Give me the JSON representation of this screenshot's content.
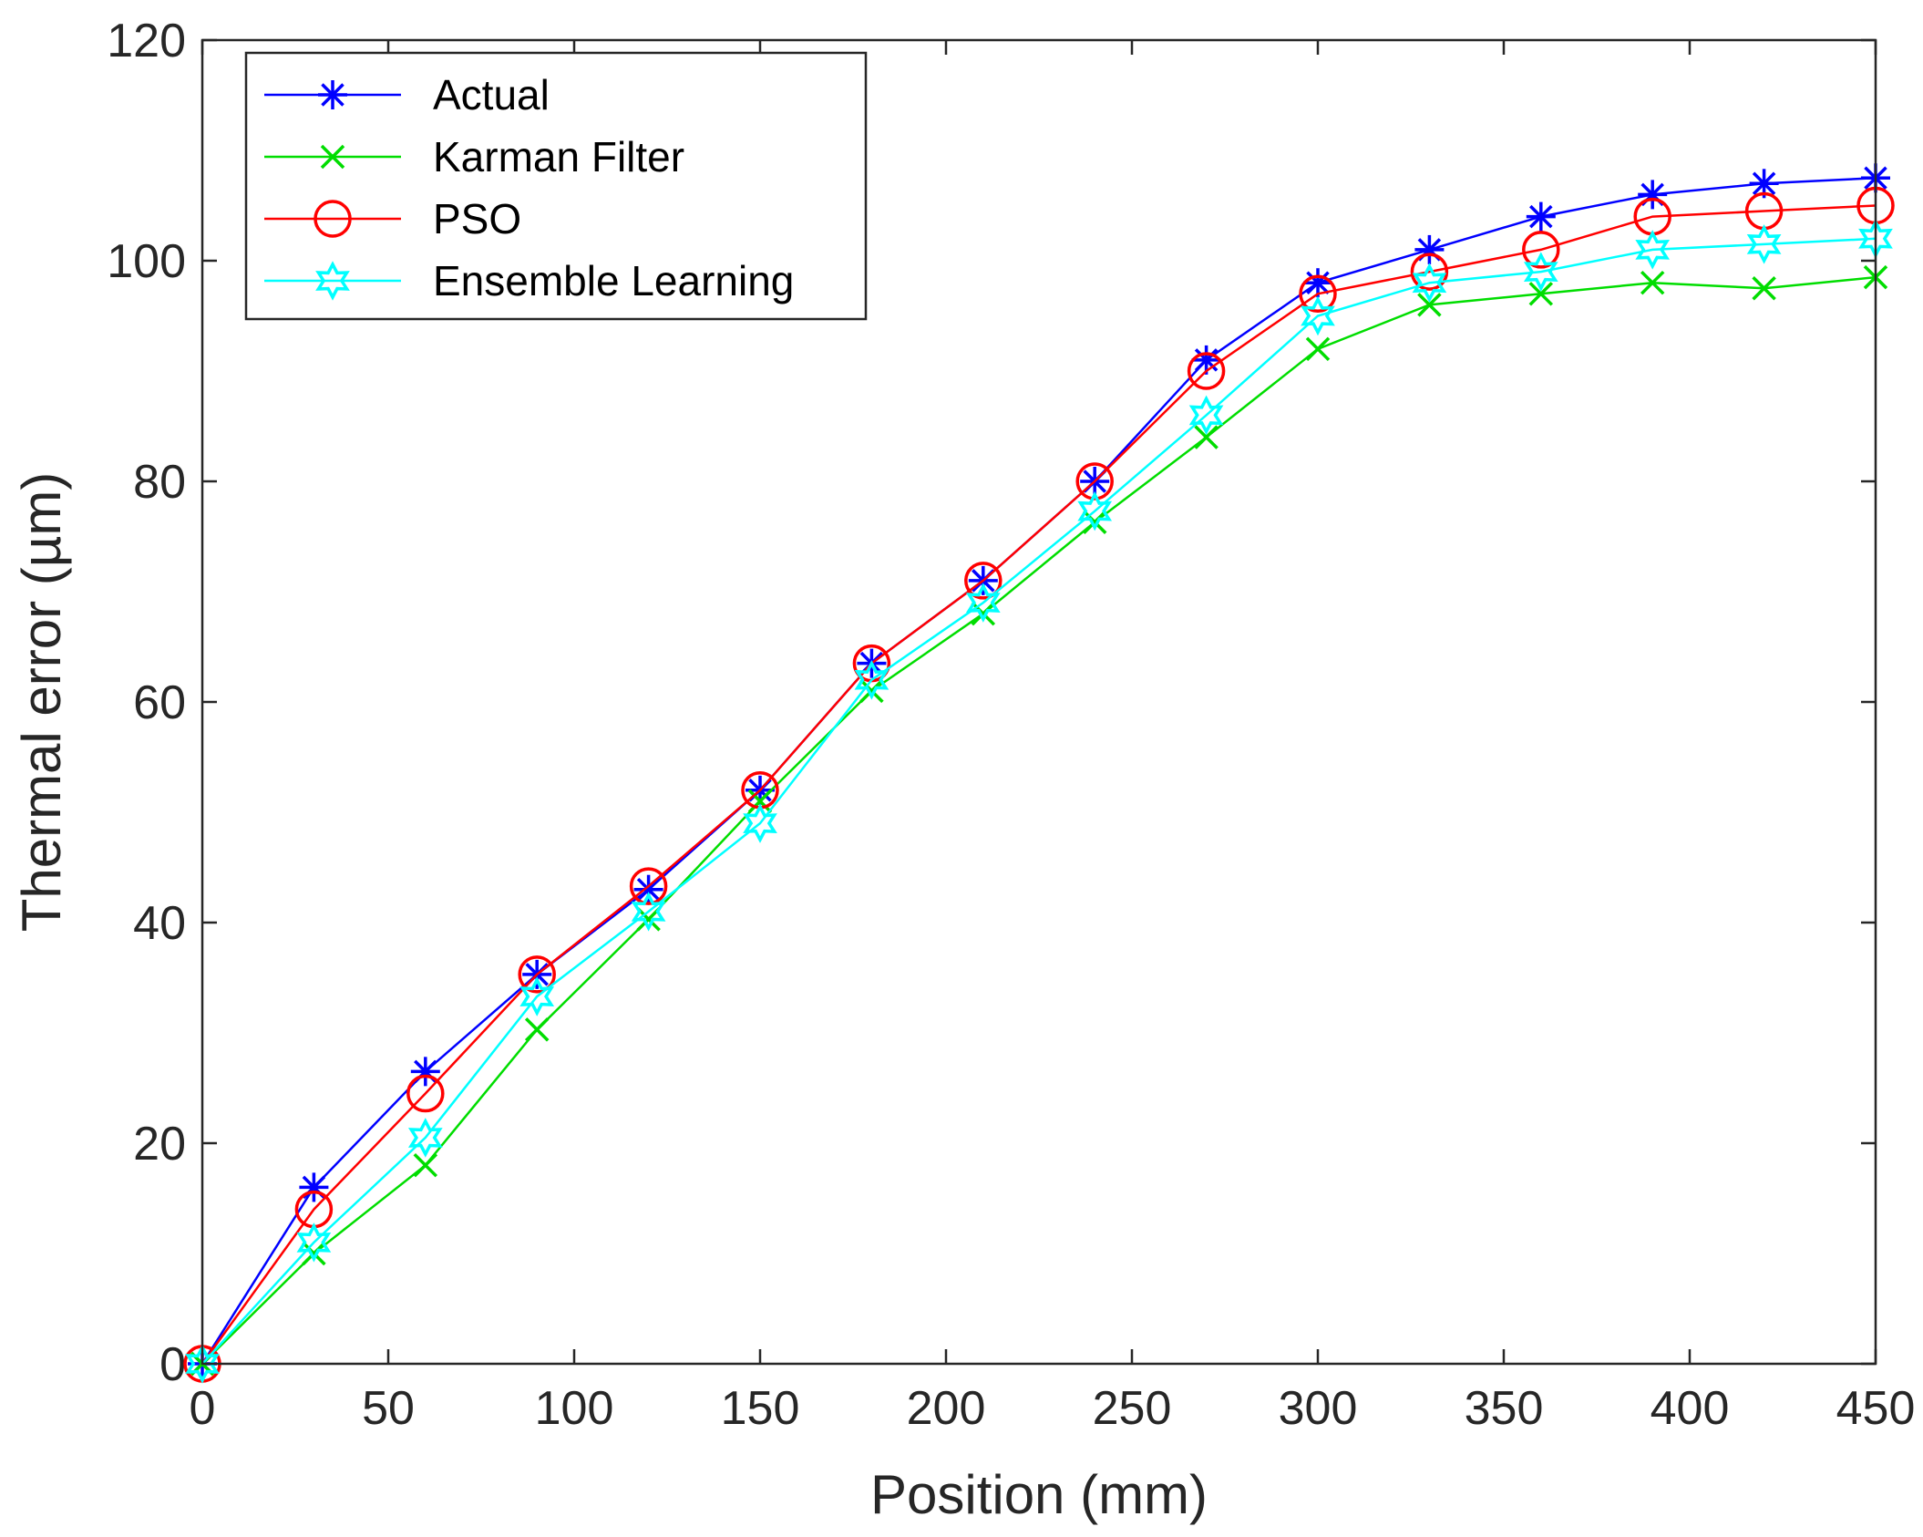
{
  "chart_data": {
    "type": "line",
    "title": "",
    "xlabel": "Position (mm)",
    "ylabel": "Thermal error (µm)",
    "xlim": [
      0,
      450
    ],
    "ylim": [
      0,
      120
    ],
    "xticks": [
      0,
      50,
      100,
      150,
      200,
      250,
      300,
      350,
      400,
      450
    ],
    "yticks": [
      0,
      20,
      40,
      60,
      80,
      100,
      120
    ],
    "grid": false,
    "legend_position": "top-left",
    "x": [
      0,
      30,
      60,
      90,
      120,
      150,
      180,
      210,
      240,
      270,
      300,
      330,
      360,
      390,
      420,
      450
    ],
    "series": [
      {
        "name": "Actual",
        "color": "#0000ff",
        "marker": "asterisk",
        "values": [
          0,
          16,
          26.5,
          35.3,
          43,
          52,
          63.5,
          71,
          80,
          91,
          98,
          101,
          104,
          106,
          107,
          107.5
        ]
      },
      {
        "name": "Karman Filter",
        "color": "#00dd00",
        "marker": "x",
        "values": [
          0,
          10,
          18,
          30.3,
          40.3,
          51,
          61,
          68,
          76.3,
          84,
          92,
          96,
          97,
          98,
          97.5,
          98.5
        ]
      },
      {
        "name": "PSO",
        "color": "#ff0000",
        "marker": "circle",
        "values": [
          0,
          14,
          24.5,
          35.3,
          43.3,
          52,
          63.5,
          71,
          80,
          90,
          97,
          99,
          101,
          104,
          104.5,
          105
        ]
      },
      {
        "name": "Ensemble Learning",
        "color": "#00ffff",
        "marker": "hexagram",
        "values": [
          0,
          11,
          20.5,
          33.3,
          41,
          49,
          62,
          69,
          77.3,
          86,
          95,
          98,
          99,
          101,
          101.5,
          102
        ]
      }
    ]
  }
}
